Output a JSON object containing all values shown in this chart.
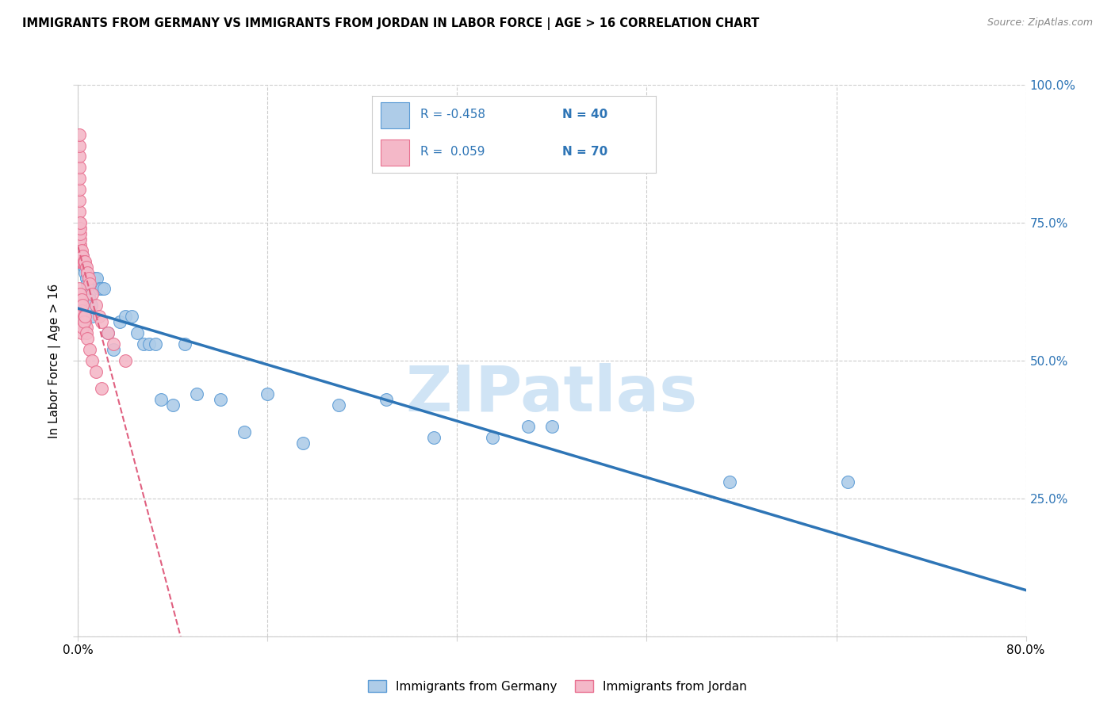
{
  "title": "IMMIGRANTS FROM GERMANY VS IMMIGRANTS FROM JORDAN IN LABOR FORCE | AGE > 16 CORRELATION CHART",
  "source": "Source: ZipAtlas.com",
  "ylabel": "In Labor Force | Age > 16",
  "ytick_vals": [
    0.0,
    0.25,
    0.5,
    0.75,
    1.0
  ],
  "ytick_labels": [
    "",
    "25.0%",
    "50.0%",
    "75.0%",
    "100.0%"
  ],
  "xtick_vals": [
    0.0,
    0.16,
    0.32,
    0.48,
    0.64,
    0.8
  ],
  "xtick_labels": [
    "0.0%",
    "",
    "",
    "",
    "",
    "80.0%"
  ],
  "legend_germany": "Immigrants from Germany",
  "legend_jordan": "Immigrants from Jordan",
  "R_germany": -0.458,
  "N_germany": 40,
  "R_jordan": 0.059,
  "N_jordan": 70,
  "color_germany_fill": "#AECCE8",
  "color_germany_edge": "#5B9BD5",
  "color_jordan_fill": "#F4B8C8",
  "color_jordan_edge": "#E87090",
  "trendline_germany_color": "#2E75B6",
  "trendline_jordan_color": "#E06080",
  "background_color": "#FFFFFF",
  "watermark": "ZIPatlas",
  "watermark_color": "#D0E4F5",
  "germany_x": [
    0.003,
    0.004,
    0.005,
    0.006,
    0.007,
    0.008,
    0.009,
    0.01,
    0.011,
    0.012,
    0.014,
    0.016,
    0.018,
    0.02,
    0.022,
    0.025,
    0.03,
    0.035,
    0.04,
    0.045,
    0.05,
    0.055,
    0.06,
    0.065,
    0.07,
    0.08,
    0.09,
    0.1,
    0.12,
    0.14,
    0.16,
    0.19,
    0.22,
    0.26,
    0.3,
    0.35,
    0.38,
    0.4,
    0.55,
    0.65
  ],
  "germany_y": [
    0.68,
    0.69,
    0.67,
    0.66,
    0.65,
    0.64,
    0.62,
    0.61,
    0.6,
    0.58,
    0.65,
    0.65,
    0.63,
    0.63,
    0.63,
    0.55,
    0.52,
    0.57,
    0.58,
    0.58,
    0.55,
    0.53,
    0.53,
    0.53,
    0.43,
    0.42,
    0.53,
    0.44,
    0.43,
    0.37,
    0.44,
    0.35,
    0.42,
    0.43,
    0.36,
    0.36,
    0.38,
    0.38,
    0.28,
    0.28
  ],
  "jordan_x": [
    0.001,
    0.001,
    0.001,
    0.001,
    0.001,
    0.001,
    0.001,
    0.001,
    0.001,
    0.001,
    0.001,
    0.001,
    0.001,
    0.001,
    0.001,
    0.001,
    0.001,
    0.001,
    0.001,
    0.001,
    0.002,
    0.002,
    0.002,
    0.002,
    0.002,
    0.002,
    0.002,
    0.002,
    0.002,
    0.002,
    0.003,
    0.003,
    0.003,
    0.003,
    0.004,
    0.004,
    0.005,
    0.005,
    0.006,
    0.007,
    0.008,
    0.009,
    0.01,
    0.012,
    0.015,
    0.018,
    0.02,
    0.025,
    0.03,
    0.04,
    0.001,
    0.001,
    0.002,
    0.002,
    0.003,
    0.003,
    0.004,
    0.005,
    0.006,
    0.007,
    0.003,
    0.004,
    0.005,
    0.006,
    0.007,
    0.008,
    0.01,
    0.012,
    0.015,
    0.02
  ],
  "jordan_y": [
    0.68,
    0.68,
    0.68,
    0.68,
    0.68,
    0.69,
    0.7,
    0.71,
    0.72,
    0.73,
    0.74,
    0.75,
    0.77,
    0.79,
    0.81,
    0.83,
    0.85,
    0.87,
    0.89,
    0.91,
    0.68,
    0.68,
    0.68,
    0.69,
    0.7,
    0.71,
    0.72,
    0.73,
    0.74,
    0.75,
    0.68,
    0.68,
    0.69,
    0.7,
    0.68,
    0.69,
    0.68,
    0.68,
    0.68,
    0.67,
    0.66,
    0.65,
    0.64,
    0.62,
    0.6,
    0.58,
    0.57,
    0.55,
    0.53,
    0.5,
    0.63,
    0.61,
    0.62,
    0.6,
    0.61,
    0.59,
    0.6,
    0.58,
    0.57,
    0.56,
    0.55,
    0.56,
    0.57,
    0.58,
    0.55,
    0.54,
    0.52,
    0.5,
    0.48,
    0.45
  ]
}
